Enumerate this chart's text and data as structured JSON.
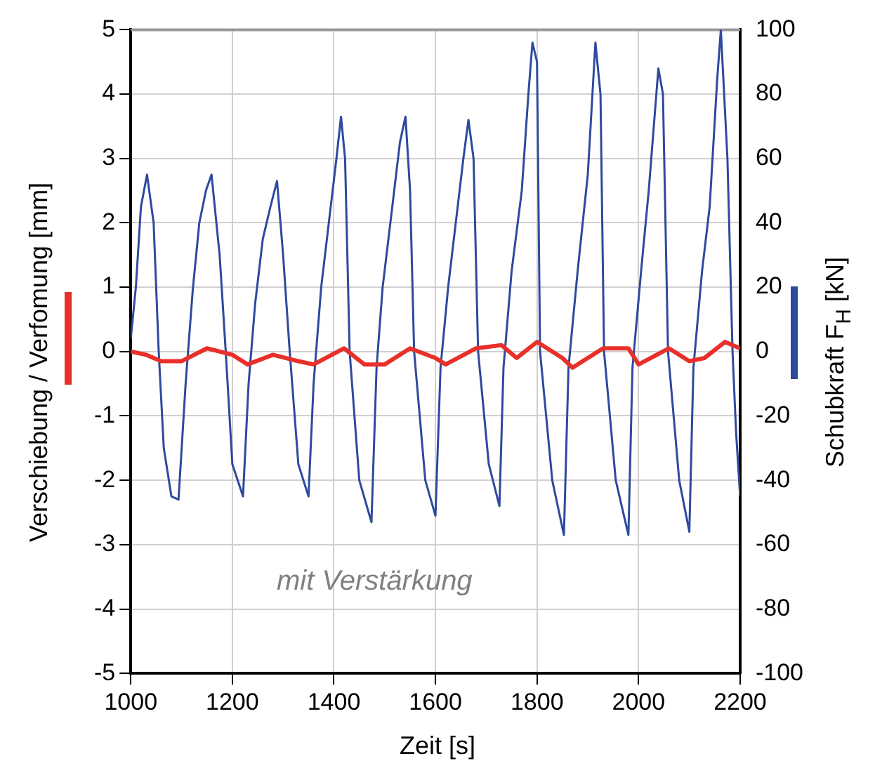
{
  "chart_data": {
    "type": "line",
    "xlabel": "Zeit [s]",
    "ylabel": "Verschiebung / Verfomung [mm]",
    "y2label": "Schubkraft F$_{H}$ [kN]",
    "annotations": [
      "mit Verstärkung"
    ],
    "series": [
      {
        "color": "#e8302a",
        "axis": "y",
        "x": [
          1000,
          1030,
          1060,
          1100,
          1150,
          1200,
          1230,
          1280,
          1330,
          1360,
          1420,
          1460,
          1500,
          1550,
          1600,
          1620,
          1680,
          1730,
          1760,
          1800,
          1850,
          1870,
          1930,
          1980,
          2000,
          2060,
          2100,
          2130,
          2170,
          2200
        ],
        "values": [
          0,
          -0.05,
          -0.15,
          -0.15,
          0.05,
          -0.05,
          -0.2,
          -0.05,
          -0.15,
          -0.2,
          0.05,
          -0.2,
          -0.2,
          0.05,
          -0.1,
          -0.2,
          0.05,
          0.1,
          -0.1,
          0.15,
          -0.1,
          -0.25,
          0.05,
          0.05,
          -0.2,
          0.05,
          -0.15,
          -0.1,
          0.15,
          0.05
        ]
      },
      {
        "color": "#2e4a9e",
        "axis": "y2",
        "x": [
          1000,
          1010,
          1020,
          1032,
          1045,
          1055,
          1065,
          1080,
          1094,
          1108,
          1122,
          1135,
          1148,
          1159,
          1175,
          1187,
          1200,
          1221,
          1232,
          1245,
          1260,
          1275,
          1288,
          1300,
          1313,
          1330,
          1350,
          1360,
          1375,
          1390,
          1405,
          1414,
          1422,
          1431,
          1450,
          1474,
          1484,
          1496,
          1515,
          1530,
          1541,
          1550,
          1558,
          1580,
          1600,
          1610,
          1625,
          1640,
          1655,
          1665,
          1675,
          1684,
          1705,
          1726,
          1734,
          1750,
          1770,
          1783,
          1791,
          1800,
          1806,
          1830,
          1853,
          1862,
          1880,
          1900,
          1915,
          1925,
          1932,
          1955,
          1980,
          1988,
          2005,
          2020,
          2039,
          2048,
          2058,
          2080,
          2100,
          2108,
          2125,
          2140,
          2155,
          2162,
          2175,
          2185,
          2192,
          2200
        ],
        "values": [
          4,
          20,
          45,
          55,
          40,
          0,
          -30,
          -45,
          -46,
          -10,
          19,
          40,
          50,
          55,
          30,
          0,
          -35,
          -45,
          -10,
          15,
          35,
          45,
          53,
          30,
          0,
          -35,
          -45,
          -10,
          20,
          40,
          60,
          73,
          60,
          0,
          -40,
          -53,
          -5,
          20,
          45,
          65,
          73,
          50,
          0,
          -40,
          -51,
          -5,
          20,
          40,
          60,
          72,
          60,
          0,
          -35,
          -48,
          -5,
          25,
          50,
          80,
          96,
          90,
          0,
          -40,
          -57,
          -5,
          25,
          55,
          96,
          80,
          0,
          -40,
          -57,
          -5,
          25,
          50,
          88,
          80,
          0,
          -40,
          -56,
          -5,
          25,
          45,
          85,
          100,
          60,
          0,
          -25,
          -45
        ]
      }
    ],
    "xlim": [
      1000,
      2200
    ],
    "xticks": [
      1000,
      1200,
      1400,
      1600,
      1800,
      2000,
      2200
    ],
    "ylim": [
      -5,
      5
    ],
    "yticks": [
      -5,
      -4,
      -3,
      -2,
      -1,
      0,
      1,
      2,
      3,
      4,
      5
    ],
    "y2lim": [
      -100,
      100
    ],
    "y2ticks": [
      -100,
      -80,
      -60,
      -40,
      -20,
      0,
      20,
      40,
      60,
      80,
      100
    ],
    "grid": true,
    "marker": "none",
    "line_style": "solid"
  }
}
